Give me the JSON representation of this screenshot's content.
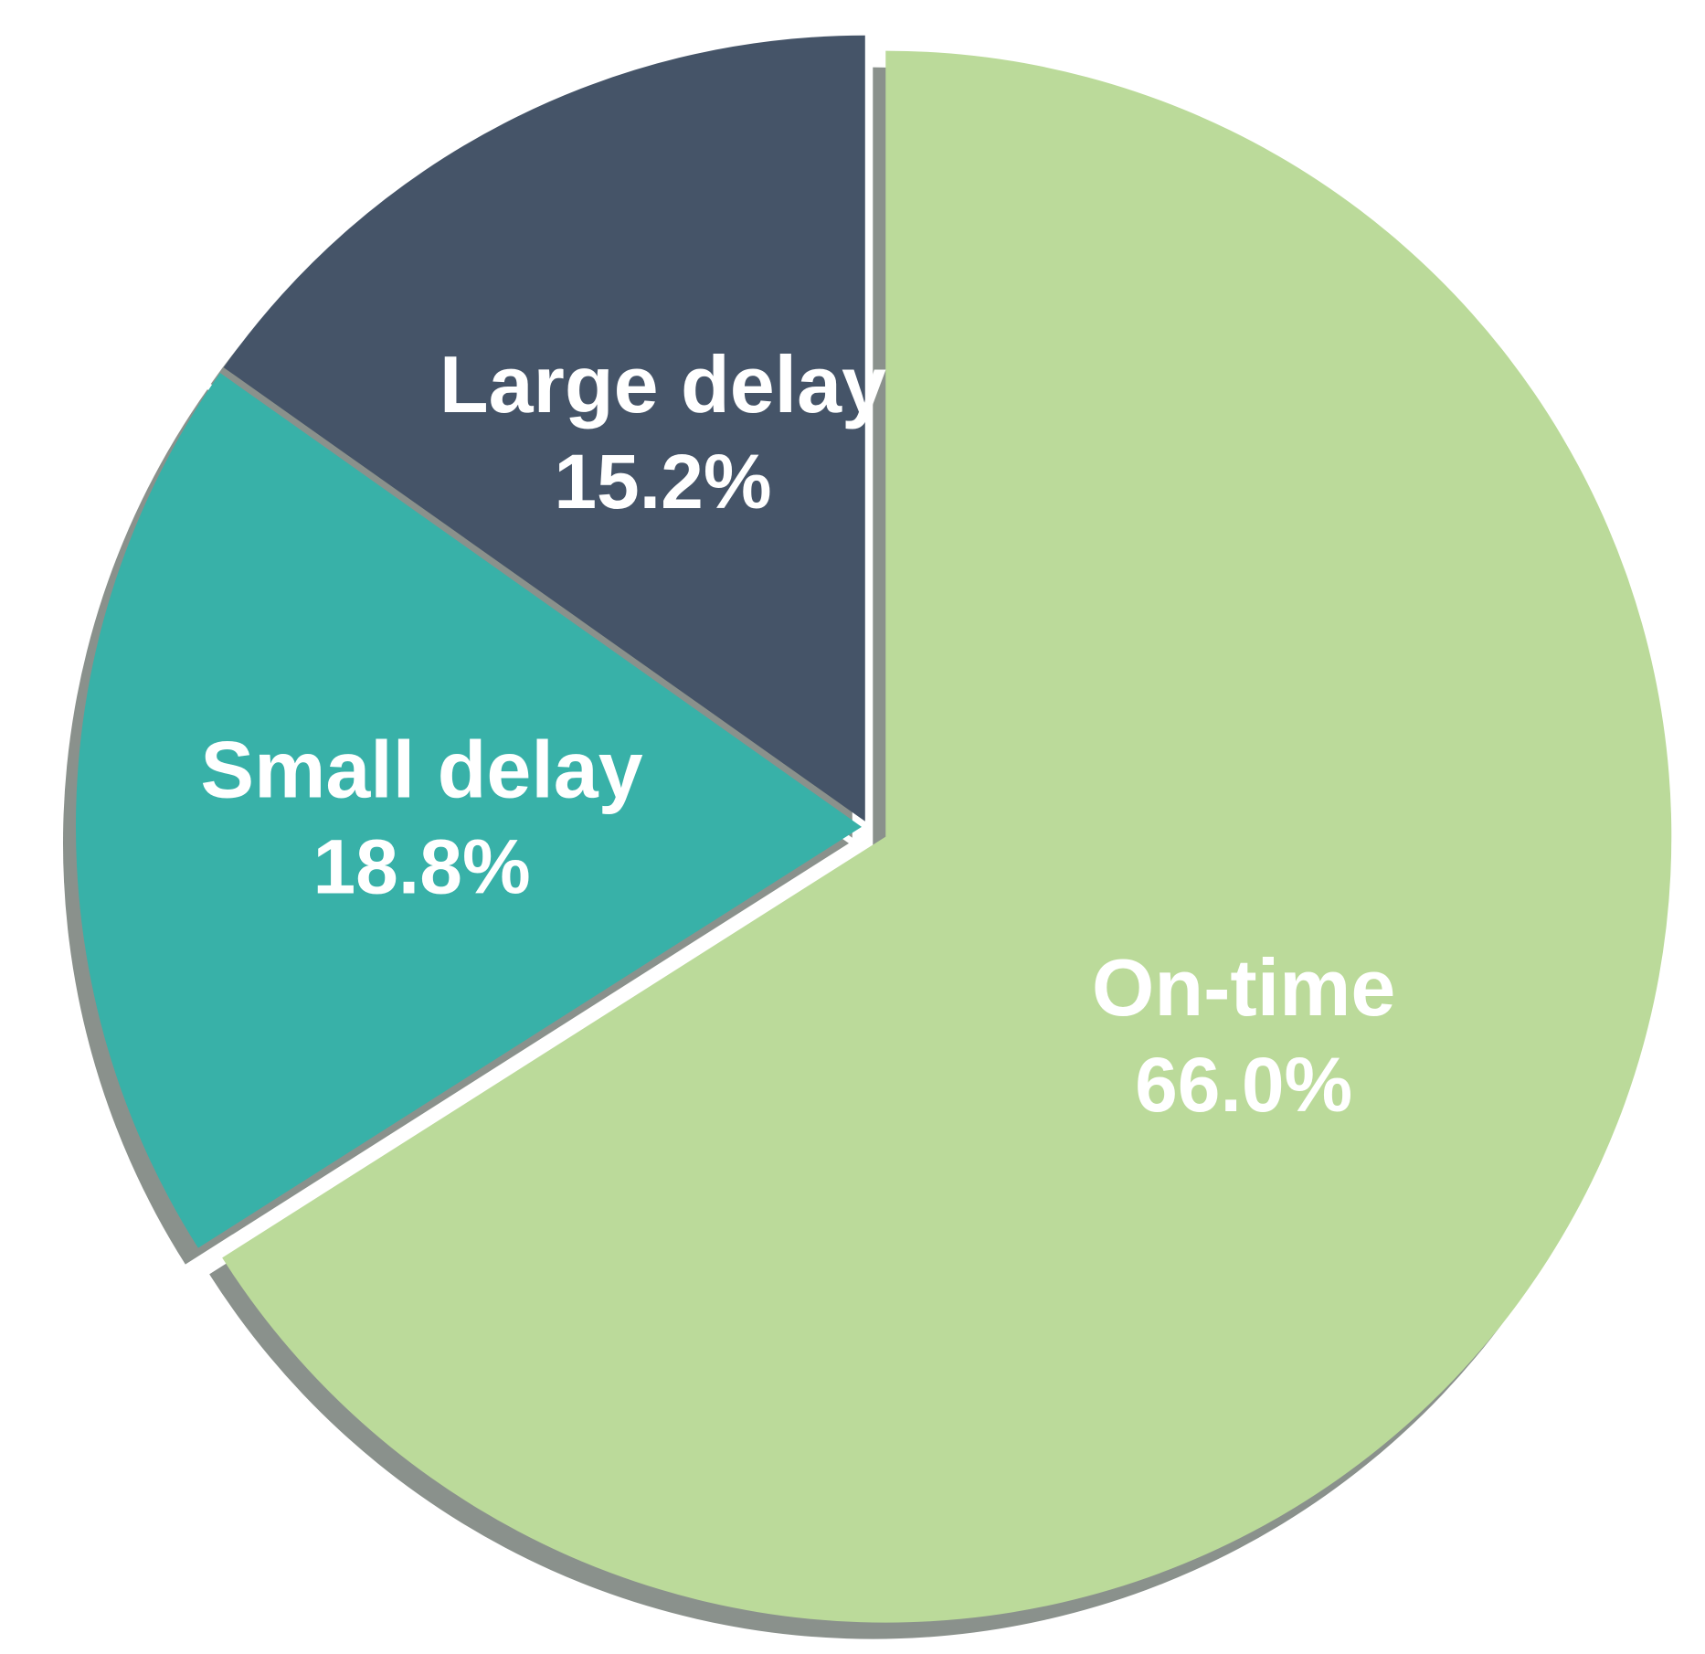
{
  "chart_data": {
    "type": "pie",
    "title": "",
    "slices": [
      {
        "label": "On-time",
        "value_text": "66.0%",
        "value": 66.0,
        "color": "#bbda9a"
      },
      {
        "label": "Small delay",
        "value_text": "18.8%",
        "value": 18.8,
        "color": "#38b1a8"
      },
      {
        "label": "Large delay",
        "value_text": "15.2%",
        "value": 15.2,
        "color": "#455468"
      }
    ],
    "legend": "none",
    "labels": "inside slices",
    "shadow_color": "#8a918c",
    "exploded": [
      "On-time"
    ]
  }
}
